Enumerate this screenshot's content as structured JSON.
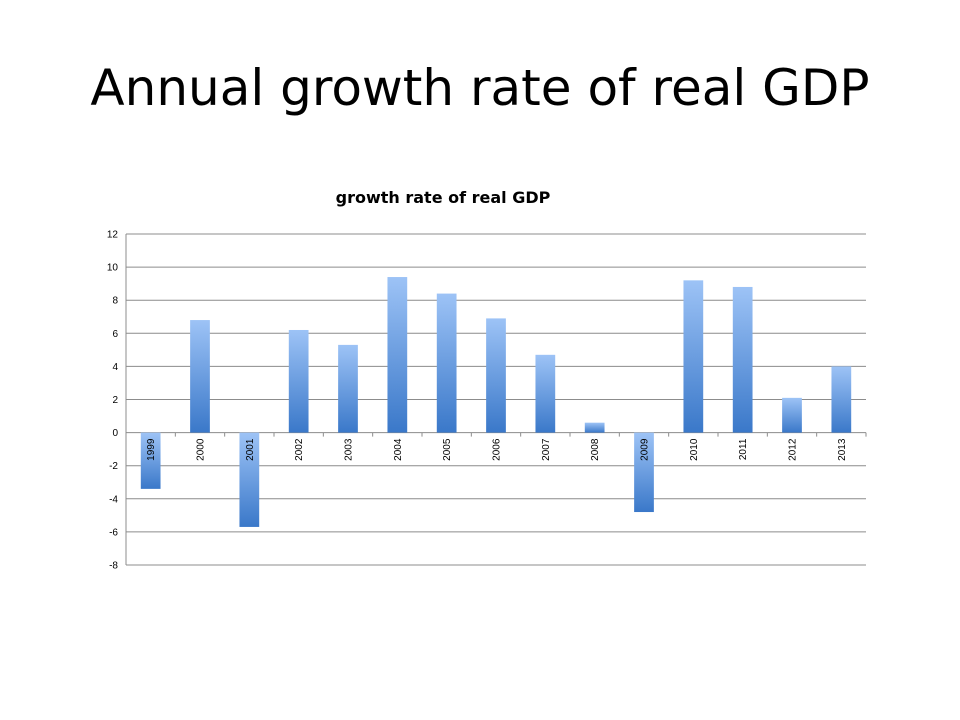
{
  "slide": {
    "title": "Annual growth rate of real GDP"
  },
  "chart_data": {
    "type": "bar",
    "title": "growth rate of real GDP",
    "xlabel": "",
    "ylabel": "",
    "categories": [
      "1999",
      "2000",
      "2001",
      "2002",
      "2003",
      "2004",
      "2005",
      "2006",
      "2007",
      "2008",
      "2009",
      "2010",
      "2011",
      "2012",
      "2013"
    ],
    "values": [
      -3.4,
      6.8,
      -5.7,
      6.2,
      5.3,
      9.4,
      8.4,
      6.9,
      4.7,
      0.6,
      -4.8,
      9.2,
      8.8,
      2.1,
      4.0
    ],
    "ylim": [
      -8,
      12
    ],
    "yticks": [
      12,
      10,
      8,
      6,
      4,
      2,
      0,
      -2,
      -4,
      -6,
      -8
    ],
    "grid": true,
    "legend": "none",
    "colors": {
      "bar_light": "#9dc3f6",
      "bar_dark": "#3a78c9",
      "grid": "#8c8c8c"
    }
  }
}
